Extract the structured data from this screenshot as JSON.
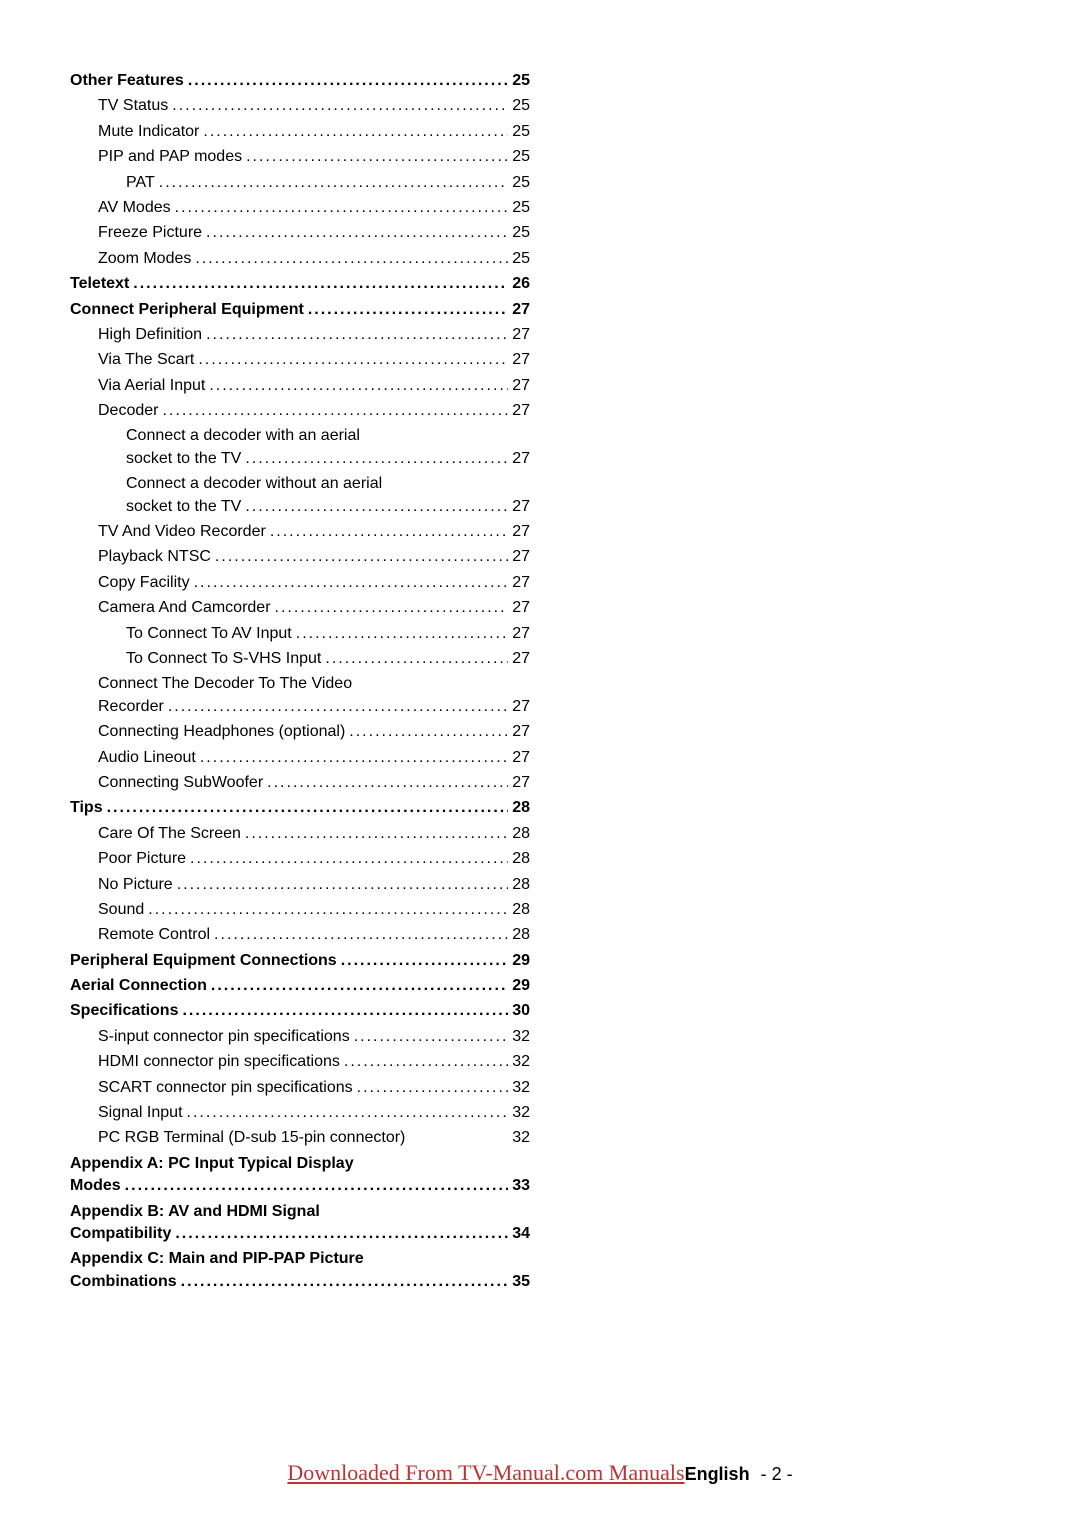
{
  "toc": [
    {
      "label": "Other Features",
      "page": "25",
      "bold": true,
      "indent": 0,
      "dots": true
    },
    {
      "label": "TV Status",
      "page": "25",
      "bold": false,
      "indent": 1,
      "dots": true
    },
    {
      "label": "Mute Indicator",
      "page": "25",
      "bold": false,
      "indent": 1,
      "dots": true
    },
    {
      "label": "PIP and PAP modes",
      "page": "25",
      "bold": false,
      "indent": 1,
      "dots": true
    },
    {
      "label": "PAT",
      "page": "25",
      "bold": false,
      "indent": 2,
      "dots": true
    },
    {
      "label": "AV Modes",
      "page": "25",
      "bold": false,
      "indent": 1,
      "dots": true
    },
    {
      "label": "Freeze Picture",
      "page": "25",
      "bold": false,
      "indent": 1,
      "dots": true
    },
    {
      "label": "Zoom Modes",
      "page": "25",
      "bold": false,
      "indent": 1,
      "dots": true
    },
    {
      "label": "Teletext",
      "page": "26",
      "bold": true,
      "indent": 0,
      "dots": true
    },
    {
      "label": "Connect Peripheral Equipment",
      "page": "27",
      "bold": true,
      "indent": 0,
      "dots": true
    },
    {
      "label": "High Definition",
      "page": "27",
      "bold": false,
      "indent": 1,
      "dots": true
    },
    {
      "label": "Via The Scart",
      "page": "27",
      "bold": false,
      "indent": 1,
      "dots": true
    },
    {
      "label": "Via Aerial Input",
      "page": "27",
      "bold": false,
      "indent": 1,
      "dots": true
    },
    {
      "label": "Decoder",
      "page": "27",
      "bold": false,
      "indent": 1,
      "dots": true
    },
    {
      "wrap": true,
      "line1": "Connect a decoder with an aerial",
      "line2": "socket to the TV",
      "page": "27",
      "bold": false,
      "indent": 2,
      "dots": true
    },
    {
      "wrap": true,
      "line1": "Connect a decoder without an aerial",
      "line2": "socket to the TV",
      "page": "27",
      "bold": false,
      "indent": 2,
      "dots": true
    },
    {
      "label": "TV And Video Recorder",
      "page": "27",
      "bold": false,
      "indent": 1,
      "dots": true
    },
    {
      "label": "Playback NTSC",
      "page": "27",
      "bold": false,
      "indent": 1,
      "dots": true
    },
    {
      "label": "Copy Facility",
      "page": "27",
      "bold": false,
      "indent": 1,
      "dots": true
    },
    {
      "label": "Camera And Camcorder",
      "page": "27",
      "bold": false,
      "indent": 1,
      "dots": true
    },
    {
      "label": "To Connect To AV Input",
      "page": "27",
      "bold": false,
      "indent": 2,
      "dots": true
    },
    {
      "label": "To Connect To S-VHS Input",
      "page": "27",
      "bold": false,
      "indent": 2,
      "dots": true
    },
    {
      "wrap": true,
      "line1_indent": 1,
      "line1": "Connect The Decoder To The Video",
      "line2_indent": 1,
      "line2": "Recorder",
      "page": "27",
      "bold": false,
      "indent": 1,
      "dots": true
    },
    {
      "label": "Connecting Headphones (optional)",
      "page": "27",
      "bold": false,
      "indent": 1,
      "dots": true
    },
    {
      "label": "Audio Lineout",
      "page": "27",
      "bold": false,
      "indent": 1,
      "dots": true
    },
    {
      "label": "Connecting SubWoofer",
      "page": "27",
      "bold": false,
      "indent": 1,
      "dots": true
    },
    {
      "label": "Tips",
      "page": "28",
      "bold": true,
      "indent": 0,
      "dots": true
    },
    {
      "label": "Care Of The Screen",
      "page": "28",
      "bold": false,
      "indent": 1,
      "dots": true
    },
    {
      "label": "Poor Picture",
      "page": "28",
      "bold": false,
      "indent": 1,
      "dots": true
    },
    {
      "label": "No Picture",
      "page": "28",
      "bold": false,
      "indent": 1,
      "dots": true
    },
    {
      "label": "Sound",
      "page": "28",
      "bold": false,
      "indent": 1,
      "dots": true
    },
    {
      "label": "Remote Control",
      "page": "28",
      "bold": false,
      "indent": 1,
      "dots": true
    },
    {
      "label": "Peripheral Equipment Connections",
      "page": "29",
      "bold": true,
      "indent": 0,
      "dots": true
    },
    {
      "label": "Aerial Connection",
      "page": "29",
      "bold": true,
      "indent": 0,
      "dots": true
    },
    {
      "label": "Specifications",
      "page": "30",
      "bold": true,
      "indent": 0,
      "dots": true
    },
    {
      "label": "S-input connector pin specifications",
      "page": "32",
      "bold": false,
      "indent": 1,
      "dots": true
    },
    {
      "label": "HDMI connector pin specifications",
      "page": "32",
      "bold": false,
      "indent": 1,
      "dots": true
    },
    {
      "label": "SCART connector pin specifications",
      "page": "32",
      "bold": false,
      "indent": 1,
      "dots": true
    },
    {
      "label": "Signal Input",
      "page": "32",
      "bold": false,
      "indent": 1,
      "dots": true
    },
    {
      "label": "PC RGB Terminal (D-sub 15-pin connector)",
      "page": "32",
      "bold": false,
      "indent": 1,
      "dots": false
    },
    {
      "wrap": true,
      "line1_indent": 0,
      "line1": "Appendix A: PC Input Typical Display",
      "line2_indent": 0,
      "line2": "Modes",
      "page": "33",
      "bold": true,
      "indent": 0,
      "dots": true
    },
    {
      "wrap": true,
      "line1_indent": 0,
      "line1": "Appendix B: AV and HDMI Signal",
      "line2_indent": 0,
      "line2": "Compatibility",
      "page": "34",
      "bold": true,
      "indent": 0,
      "dots": true
    },
    {
      "wrap": true,
      "line1_indent": 0,
      "line1": "Appendix C: Main and PIP-PAP Picture",
      "line2_indent": 0,
      "line2": "Combinations",
      "page": "35",
      "bold": true,
      "indent": 0,
      "dots": true
    }
  ],
  "footer": {
    "link_text": "Downloaded From TV-Manual.com Manuals",
    "lang": "English",
    "page_num": "- 2 -",
    "link_color": "#bb3333"
  }
}
